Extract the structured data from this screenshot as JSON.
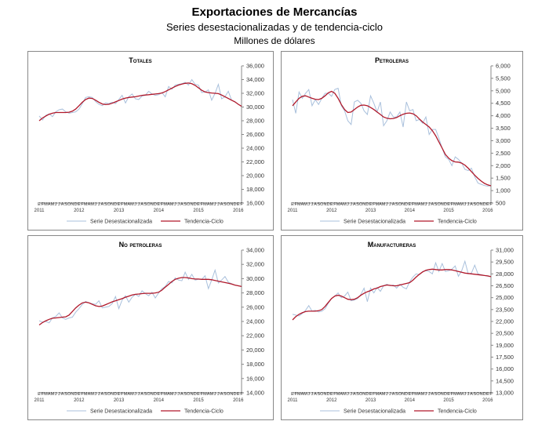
{
  "header": {
    "title": "Exportaciones de Mercancías",
    "subtitle": "Series desestacionalizadas y de tendencia-ciclo",
    "units": "Millones de dólares"
  },
  "colors": {
    "raw": "#a9c0dc",
    "trend": "#b0182a"
  },
  "months": [
    "E",
    "F",
    "M",
    "A",
    "M",
    "J",
    "J",
    "A",
    "S",
    "O",
    "N",
    "D"
  ],
  "years": [
    "2011",
    "2012",
    "2013",
    "2014",
    "2015",
    "2016"
  ],
  "chart_data": [
    {
      "type": "line",
      "title": "TOTALES",
      "ylim": [
        16000,
        36000
      ],
      "ystep": 2000,
      "x_start": "2011-01",
      "x_end": "2016-02",
      "legend": "bottom",
      "series": [
        {
          "name": "Serie Desestacionalizada",
          "values": [
            28700,
            28100,
            28800,
            29000,
            28600,
            29300,
            29600,
            29700,
            29300,
            29100,
            29200,
            29300,
            29700,
            30500,
            31400,
            31500,
            31400,
            30800,
            30400,
            30200,
            30600,
            30500,
            30700,
            30500,
            31100,
            31700,
            30600,
            31500,
            31900,
            31200,
            31100,
            31600,
            31700,
            32300,
            31900,
            31700,
            31800,
            32100,
            31500,
            33000,
            32600,
            33200,
            33300,
            33400,
            33600,
            33200,
            34000,
            33300,
            33200,
            32100,
            32200,
            32500,
            31000,
            32000,
            33300,
            31200,
            31500,
            32300,
            31000,
            30800,
            30400,
            30100
          ]
        },
        {
          "name": "Tendencia-Ciclo",
          "values": [
            28000,
            28400,
            28700,
            28950,
            29100,
            29200,
            29200,
            29200,
            29200,
            29250,
            29400,
            29700,
            30200,
            30700,
            31100,
            31300,
            31250,
            31000,
            30700,
            30450,
            30350,
            30400,
            30550,
            30750,
            30950,
            31150,
            31300,
            31400,
            31450,
            31500,
            31600,
            31700,
            31750,
            31800,
            31850,
            31900,
            31950,
            32050,
            32250,
            32500,
            32750,
            33000,
            33200,
            33350,
            33450,
            33500,
            33400,
            33150,
            32800,
            32450,
            32200,
            32100,
            32050,
            32000,
            31950,
            31750,
            31500,
            31250,
            31000,
            30750,
            30400,
            30100
          ]
        }
      ]
    },
    {
      "type": "line",
      "title": "PETROLERAS",
      "ylim": [
        500,
        6000
      ],
      "ystep": 500,
      "x_start": "2011-01",
      "x_end": "2016-02",
      "legend": "bottom",
      "series": [
        {
          "name": "Serie Desestacionalizada",
          "values": [
            4650,
            4100,
            4950,
            4700,
            4900,
            5050,
            4400,
            4650,
            4450,
            4700,
            4900,
            4900,
            4780,
            5050,
            5100,
            4400,
            4200,
            3800,
            3650,
            4550,
            4620,
            4500,
            4200,
            4050,
            4800,
            4500,
            4150,
            4550,
            3600,
            3800,
            4150,
            3950,
            3950,
            4150,
            3550,
            4550,
            4200,
            4250,
            3800,
            3850,
            3700,
            3950,
            3250,
            3450,
            3450,
            3100,
            2700,
            2350,
            2250,
            2000,
            2350,
            2250,
            2100,
            1850,
            1800,
            1900,
            1550,
            1300,
            1250,
            1200,
            1180,
            1200
          ]
        },
        {
          "name": "Tendencia-Ciclo",
          "values": [
            4400,
            4550,
            4700,
            4780,
            4800,
            4750,
            4700,
            4660,
            4650,
            4700,
            4800,
            4920,
            4980,
            4900,
            4700,
            4450,
            4250,
            4130,
            4150,
            4250,
            4350,
            4420,
            4430,
            4400,
            4330,
            4250,
            4150,
            4050,
            3950,
            3900,
            3880,
            3890,
            3930,
            4000,
            4060,
            4100,
            4110,
            4080,
            4000,
            3870,
            3750,
            3650,
            3550,
            3400,
            3200,
            2950,
            2700,
            2450,
            2300,
            2200,
            2150,
            2140,
            2100,
            2020,
            1900,
            1760,
            1620,
            1490,
            1380,
            1290,
            1230,
            1190
          ]
        }
      ]
    },
    {
      "type": "line",
      "title": "NO PETROLERAS",
      "ylim": [
        14000,
        34000
      ],
      "ystep": 2000,
      "x_start": "2011-01",
      "x_end": "2016-02",
      "legend": "bottom",
      "series": [
        {
          "name": "Serie Desestacionalizada",
          "values": [
            24100,
            23900,
            24000,
            23800,
            24500,
            24700,
            25200,
            24500,
            24300,
            24500,
            24600,
            25300,
            25800,
            26400,
            26800,
            26600,
            26500,
            26400,
            26900,
            25900,
            26000,
            26100,
            26500,
            27500,
            25800,
            27000,
            27600,
            26700,
            27400,
            27800,
            27500,
            28300,
            27900,
            27600,
            28100,
            27300,
            28000,
            28600,
            28900,
            29600,
            29400,
            30100,
            29800,
            29700,
            30900,
            29900,
            30600,
            29800,
            29900,
            29900,
            30400,
            28600,
            29800,
            31200,
            29400,
            29800,
            30300,
            29500,
            29300,
            29100,
            29000,
            28900
          ]
        },
        {
          "name": "Tendencia-Ciclo",
          "values": [
            23500,
            23850,
            24100,
            24300,
            24450,
            24500,
            24550,
            24600,
            24650,
            24900,
            25400,
            25900,
            26300,
            26600,
            26700,
            26600,
            26400,
            26200,
            26100,
            26150,
            26350,
            26550,
            26750,
            26900,
            27050,
            27200,
            27400,
            27550,
            27700,
            27800,
            27850,
            27900,
            27950,
            27950,
            27950,
            28000,
            28100,
            28400,
            28800,
            29200,
            29600,
            29900,
            30050,
            30150,
            30150,
            30100,
            30000,
            29950,
            29950,
            29900,
            29900,
            29900,
            29850,
            29750,
            29650,
            29550,
            29450,
            29350,
            29250,
            29100,
            29000,
            28900
          ]
        }
      ]
    },
    {
      "type": "line",
      "title": "MANUFACTURERAS",
      "ylim": [
        13000,
        31000
      ],
      "ystep": 1500,
      "x_start": "2011-01",
      "x_end": "2016-02",
      "legend": "bottom",
      "series": [
        {
          "name": "Serie Desestacionalizada",
          "values": [
            22900,
            22800,
            22700,
            23000,
            23400,
            24000,
            23300,
            23400,
            23200,
            23300,
            23600,
            24300,
            24900,
            25200,
            25600,
            25000,
            25200,
            25700,
            24600,
            24700,
            24900,
            25400,
            26200,
            24500,
            26200,
            25600,
            26300,
            25800,
            26500,
            26700,
            26500,
            26600,
            26200,
            26700,
            26300,
            26100,
            27000,
            27600,
            28000,
            27900,
            28300,
            28400,
            28300,
            28000,
            29400,
            28300,
            29300,
            28300,
            28400,
            28600,
            29000,
            27700,
            28400,
            29600,
            28000,
            28100,
            29100,
            28000,
            27900,
            27800,
            27700,
            27650
          ]
        },
        {
          "name": "Tendencia-Ciclo",
          "values": [
            22200,
            22600,
            22900,
            23100,
            23250,
            23300,
            23300,
            23300,
            23350,
            23500,
            23900,
            24400,
            24900,
            25200,
            25300,
            25200,
            25000,
            24800,
            24750,
            24800,
            25000,
            25300,
            25550,
            25750,
            25900,
            26100,
            26200,
            26400,
            26500,
            26600,
            26550,
            26500,
            26500,
            26600,
            26700,
            26800,
            26900,
            27200,
            27600,
            27950,
            28250,
            28450,
            28550,
            28600,
            28550,
            28500,
            28500,
            28550,
            28550,
            28500,
            28400,
            28300,
            28200,
            28100,
            28050,
            28000,
            27950,
            27900,
            27850,
            27800,
            27750,
            27650
          ]
        }
      ]
    }
  ]
}
